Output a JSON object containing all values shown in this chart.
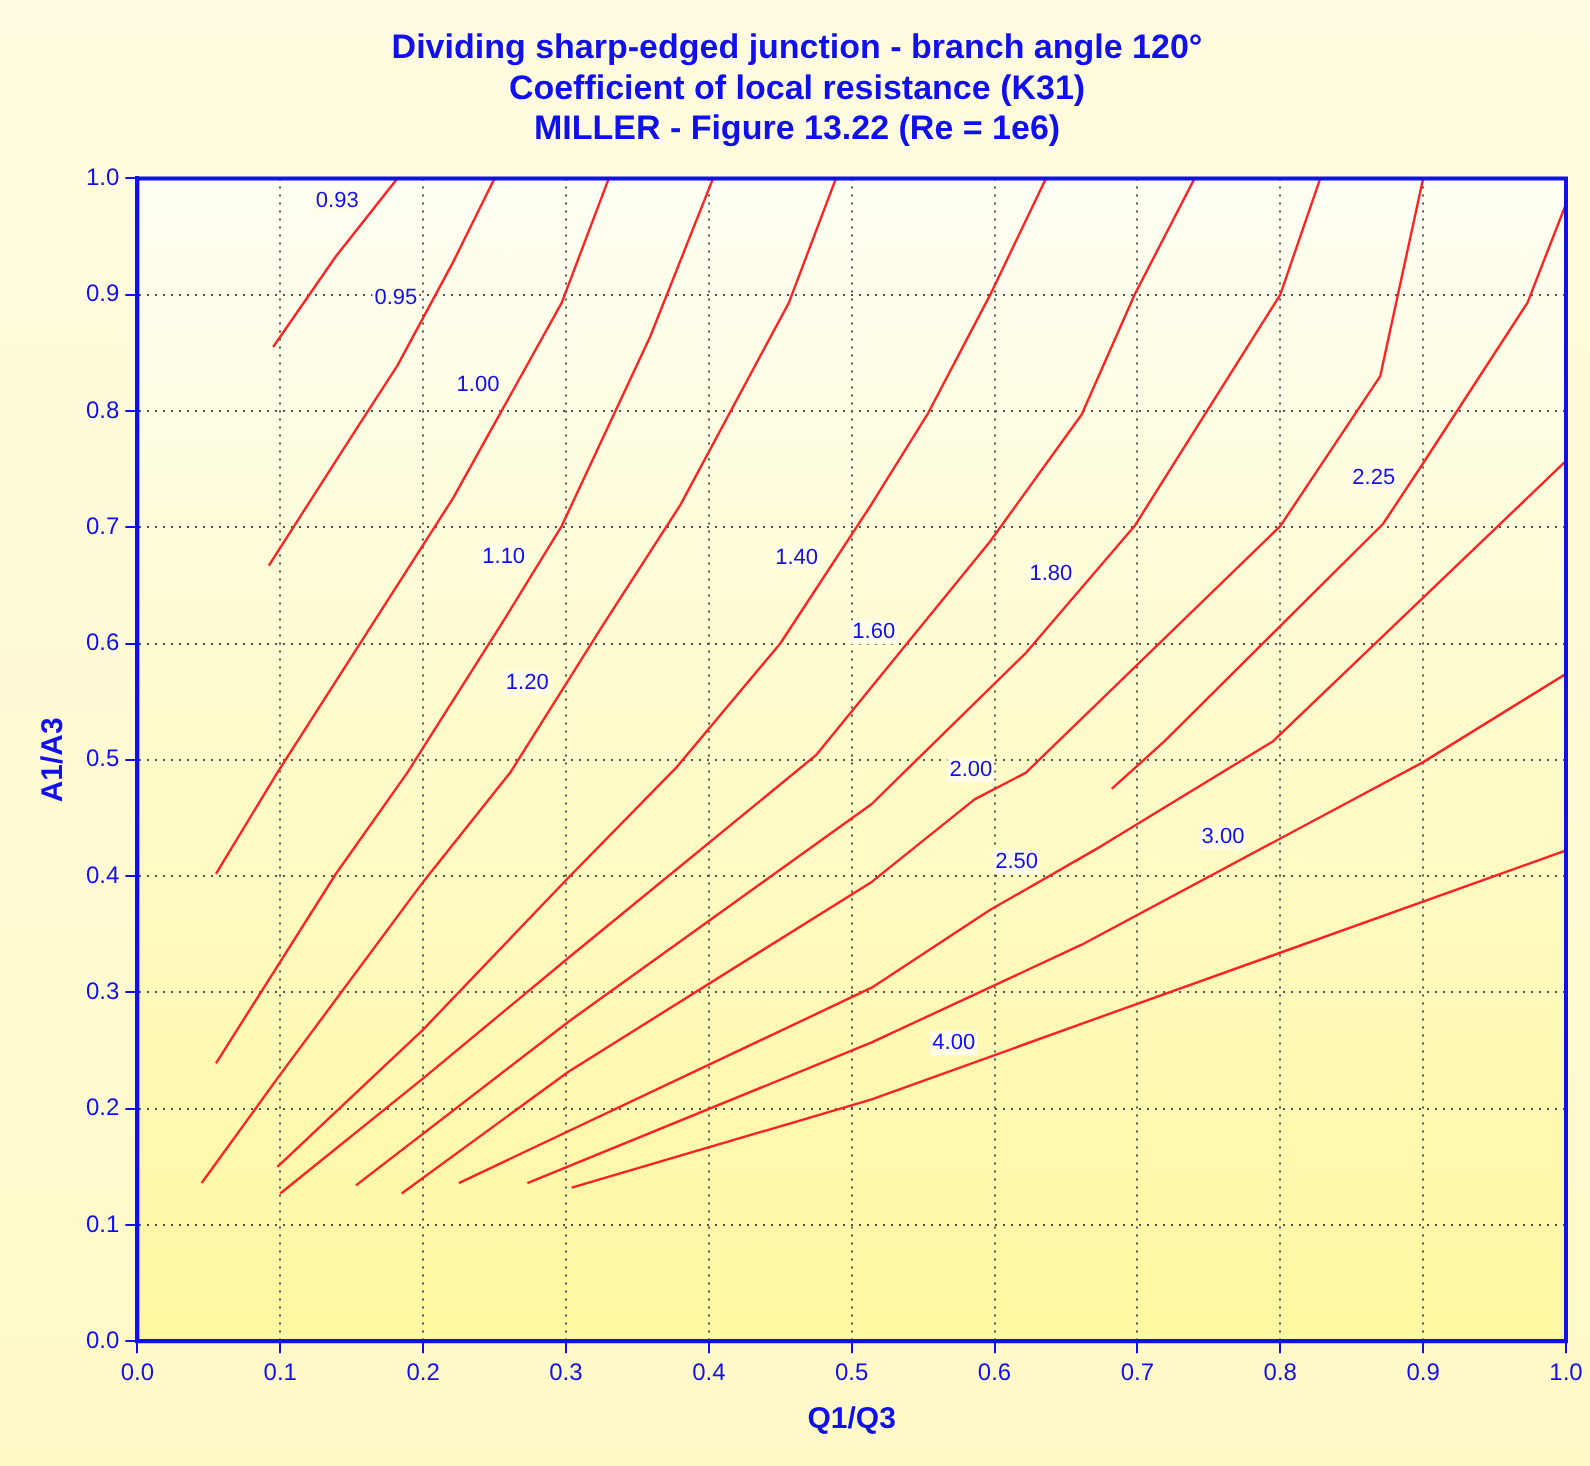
{
  "chart_data": {
    "type": "line",
    "title": "Dividing sharp-edged junction - branch angle 120°\nCoefficient of local resistance (K31)\nMILLER - Figure 13.22 (Re = 1e6)",
    "xlabel": "Q1/Q3",
    "ylabel": "A1/A3",
    "xlim": [
      0,
      1
    ],
    "ylim": [
      0,
      1
    ],
    "xticks": [
      {
        "value": 0,
        "label": "0.0"
      },
      0.1,
      0.2,
      0.3,
      0.4,
      0.5,
      0.6,
      0.7,
      0.8,
      0.9,
      {
        "value": 1,
        "label": "1.0"
      }
    ],
    "yticks": [
      {
        "value": 0,
        "label": "0.0"
      },
      0.1,
      0.2,
      0.3,
      0.4,
      0.5,
      0.6,
      0.7,
      0.8,
      0.9,
      {
        "value": 1,
        "label": "1.0"
      }
    ],
    "grid": true,
    "legend": false,
    "marker": "none",
    "series": [
      {
        "name": "0.93",
        "color": "#ff2020",
        "x": [
          0.095,
          0.139,
          0.182
        ],
        "values": [
          0.855,
          0.933,
          1.0
        ]
      },
      {
        "name": "0.95",
        "color": "#ff2020",
        "x": [
          0.092,
          0.153,
          0.182,
          0.221,
          0.25
        ],
        "values": [
          0.667,
          0.784,
          0.839,
          0.928,
          1.0
        ]
      },
      {
        "name": "1.00",
        "color": "#ff2020",
        "x": [
          0.055,
          0.098,
          0.221,
          0.297,
          0.33
        ],
        "values": [
          0.402,
          0.489,
          0.725,
          0.893,
          1.0
        ]
      },
      {
        "name": "1.10",
        "color": "#ff2020",
        "x": [
          0.055,
          0.139,
          0.189,
          0.257,
          0.297,
          0.359,
          0.403
        ],
        "values": [
          0.239,
          0.402,
          0.489,
          0.621,
          0.701,
          0.864,
          1.0
        ]
      },
      {
        "name": "1.20",
        "color": "#ff2020",
        "x": [
          0.045,
          0.098,
          0.2,
          0.261,
          0.326,
          0.38,
          0.456,
          0.489
        ],
        "values": [
          0.136,
          0.226,
          0.395,
          0.489,
          0.616,
          0.719,
          0.893,
          1.0
        ]
      },
      {
        "name": "1.40",
        "color": "#ff2020",
        "x": [
          0.098,
          0.2,
          0.302,
          0.377,
          0.45,
          0.514,
          0.553,
          0.597,
          0.636
        ],
        "values": [
          0.15,
          0.268,
          0.399,
          0.493,
          0.6,
          0.72,
          0.797,
          0.9,
          1.0
        ]
      },
      {
        "name": "1.60",
        "color": "#ff2020",
        "x": [
          0.1,
          0.2,
          0.302,
          0.475,
          0.597,
          0.661,
          0.698,
          0.74
        ],
        "values": [
          0.127,
          0.226,
          0.33,
          0.504,
          0.688,
          0.797,
          0.9,
          1.0
        ]
      },
      {
        "name": "1.80",
        "color": "#ff2020",
        "x": [
          0.153,
          0.302,
          0.514,
          0.622,
          0.698,
          0.8,
          0.828
        ],
        "values": [
          0.134,
          0.275,
          0.462,
          0.592,
          0.701,
          0.9,
          1.0
        ]
      },
      {
        "name": "2.00",
        "color": "#ff2020",
        "x": [
          0.185,
          0.302,
          0.514,
          0.586,
          0.622,
          0.8,
          0.87,
          0.9
        ],
        "values": [
          0.127,
          0.232,
          0.395,
          0.466,
          0.489,
          0.701,
          0.83,
          1.0
        ]
      },
      {
        "name": "2.25",
        "color": "#ff2020",
        "x": [
          0.682,
          0.719,
          0.872,
          0.9,
          0.973,
          1.0
        ],
        "values": [
          0.475,
          0.516,
          0.703,
          0.755,
          0.893,
          0.978
        ]
      },
      {
        "name": "2.50",
        "color": "#ff2020",
        "x": [
          0.225,
          0.514,
          0.597,
          0.675,
          0.795,
          1.0
        ],
        "values": [
          0.136,
          0.304,
          0.371,
          0.426,
          0.516,
          0.757
        ]
      },
      {
        "name": "3.00",
        "color": "#ff2020",
        "x": [
          0.273,
          0.514,
          0.661,
          0.9,
          1.0
        ],
        "values": [
          0.136,
          0.257,
          0.341,
          0.498,
          0.574
        ]
      },
      {
        "name": "4.00",
        "color": "#ff2020",
        "x": [
          0.304,
          0.514,
          0.67,
          1.0
        ],
        "values": [
          0.132,
          0.208,
          0.277,
          0.422
        ]
      }
    ]
  }
}
